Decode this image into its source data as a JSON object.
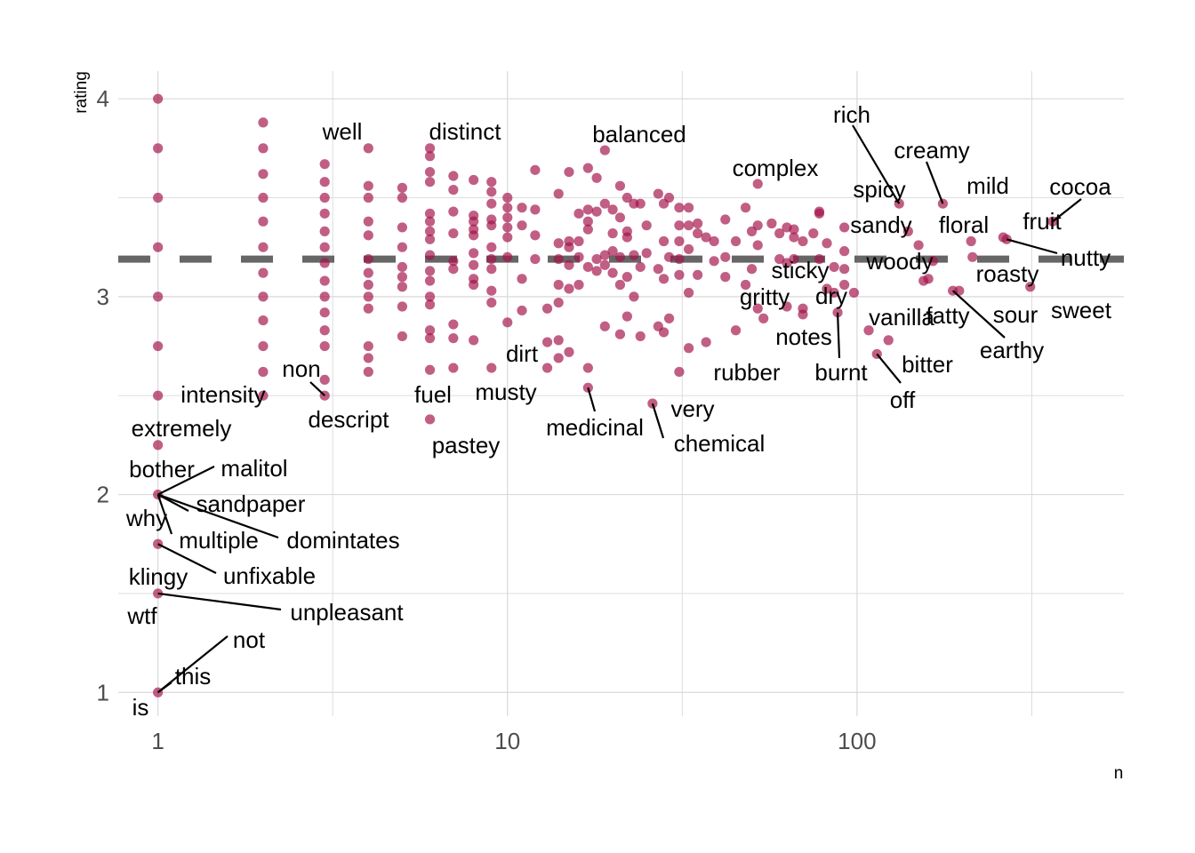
{
  "chart_data": {
    "type": "scatter",
    "title": "",
    "xlabel": "n",
    "ylabel": "rating",
    "xscale": "log10",
    "xlim": [
      0.77,
      580
    ],
    "ylim": [
      0.88,
      4.14
    ],
    "xticks": [
      {
        "value": 1,
        "label": "1"
      },
      {
        "value": 10,
        "label": "10"
      },
      {
        "value": 100,
        "label": "100"
      }
    ],
    "yticks": [
      {
        "value": 1,
        "label": "1"
      },
      {
        "value": 2,
        "label": "2"
      },
      {
        "value": 3,
        "label": "3"
      },
      {
        "value": 4,
        "label": "4"
      }
    ],
    "grid": true,
    "reference_line": {
      "y": 3.19,
      "style": "dashed",
      "color": "#666666"
    },
    "point_color": "#A3124A",
    "points": [
      [
        1,
        4.0
      ],
      [
        1,
        3.75
      ],
      [
        1,
        3.5
      ],
      [
        1,
        3.25
      ],
      [
        1,
        3.0
      ],
      [
        1,
        2.75
      ],
      [
        1,
        2.5
      ],
      [
        1,
        2.25
      ],
      [
        1,
        2.0
      ],
      [
        1,
        1.75
      ],
      [
        1,
        1.5
      ],
      [
        1,
        1.0
      ],
      [
        2,
        3.88
      ],
      [
        2,
        3.75
      ],
      [
        2,
        3.62
      ],
      [
        2,
        3.5
      ],
      [
        2,
        3.38
      ],
      [
        2,
        3.25
      ],
      [
        2,
        3.12
      ],
      [
        2,
        3.0
      ],
      [
        2,
        2.88
      ],
      [
        2,
        2.75
      ],
      [
        2,
        2.62
      ],
      [
        2,
        2.5
      ],
      [
        3,
        3.67
      ],
      [
        3,
        3.58
      ],
      [
        3,
        3.5
      ],
      [
        3,
        3.42
      ],
      [
        3,
        3.33
      ],
      [
        3,
        3.25
      ],
      [
        3,
        3.17
      ],
      [
        3,
        3.08
      ],
      [
        3,
        3.0
      ],
      [
        3,
        2.92
      ],
      [
        3,
        2.83
      ],
      [
        3,
        2.75
      ],
      [
        3,
        2.58
      ],
      [
        3,
        2.5
      ],
      [
        4,
        3.75
      ],
      [
        4,
        3.56
      ],
      [
        4,
        3.5
      ],
      [
        4,
        3.38
      ],
      [
        4,
        3.31
      ],
      [
        4,
        3.19
      ],
      [
        4,
        3.12
      ],
      [
        4,
        3.06
      ],
      [
        4,
        3.0
      ],
      [
        4,
        2.94
      ],
      [
        4,
        2.75
      ],
      [
        4,
        2.69
      ],
      [
        4,
        2.62
      ],
      [
        5,
        3.55
      ],
      [
        5,
        3.5
      ],
      [
        5,
        3.35
      ],
      [
        5,
        3.25
      ],
      [
        5,
        3.15
      ],
      [
        5,
        3.1
      ],
      [
        5,
        3.05
      ],
      [
        5,
        2.95
      ],
      [
        5,
        2.8
      ],
      [
        6,
        3.75
      ],
      [
        6,
        3.71
      ],
      [
        6,
        3.63
      ],
      [
        6,
        3.58
      ],
      [
        6,
        3.42
      ],
      [
        6,
        3.38
      ],
      [
        6,
        3.33
      ],
      [
        6,
        3.29
      ],
      [
        6,
        3.21
      ],
      [
        6,
        3.13
      ],
      [
        6,
        3.08
      ],
      [
        6,
        3.0
      ],
      [
        6,
        2.96
      ],
      [
        6,
        2.83
      ],
      [
        6,
        2.79
      ],
      [
        6,
        2.63
      ],
      [
        6,
        2.38
      ],
      [
        7,
        3.61
      ],
      [
        7,
        3.54
      ],
      [
        7,
        3.43
      ],
      [
        7,
        3.32
      ],
      [
        7,
        3.18
      ],
      [
        7,
        3.14
      ],
      [
        7,
        2.86
      ],
      [
        7,
        2.79
      ],
      [
        7,
        2.64
      ],
      [
        8,
        3.59
      ],
      [
        8,
        3.41
      ],
      [
        8,
        3.38
      ],
      [
        8,
        3.34
      ],
      [
        8,
        3.31
      ],
      [
        8,
        3.22
      ],
      [
        8,
        3.16
      ],
      [
        8,
        3.09
      ],
      [
        8,
        3.06
      ],
      [
        8,
        2.78
      ],
      [
        9,
        3.58
      ],
      [
        9,
        3.53
      ],
      [
        9,
        3.47
      ],
      [
        9,
        3.39
      ],
      [
        9,
        3.36
      ],
      [
        9,
        3.25
      ],
      [
        9,
        3.19
      ],
      [
        9,
        3.14
      ],
      [
        9,
        3.03
      ],
      [
        9,
        2.97
      ],
      [
        9,
        2.64
      ],
      [
        10,
        3.5
      ],
      [
        10,
        3.45
      ],
      [
        10,
        3.4
      ],
      [
        10,
        3.35
      ],
      [
        10,
        3.3
      ],
      [
        10,
        3.2
      ],
      [
        10,
        2.87
      ],
      [
        11,
        3.45
      ],
      [
        11,
        3.36
      ],
      [
        11,
        3.09
      ],
      [
        11,
        2.93
      ],
      [
        12,
        3.64
      ],
      [
        12,
        3.44
      ],
      [
        12,
        3.31
      ],
      [
        12,
        3.19
      ],
      [
        13,
        2.94
      ],
      [
        13,
        2.77
      ],
      [
        13,
        2.64
      ],
      [
        14,
        3.52
      ],
      [
        14,
        3.27
      ],
      [
        14,
        3.19
      ],
      [
        14,
        3.06
      ],
      [
        14,
        2.97
      ],
      [
        14,
        2.78
      ],
      [
        14,
        2.69
      ],
      [
        15,
        3.63
      ],
      [
        15,
        3.28
      ],
      [
        15,
        3.25
      ],
      [
        15,
        3.16
      ],
      [
        15,
        3.04
      ],
      [
        15,
        2.72
      ],
      [
        16,
        3.42
      ],
      [
        16,
        3.28
      ],
      [
        16,
        3.2
      ],
      [
        16,
        3.06
      ],
      [
        17,
        3.65
      ],
      [
        17,
        3.44
      ],
      [
        17,
        3.38
      ],
      [
        17,
        3.34
      ],
      [
        17,
        3.15
      ],
      [
        17,
        2.64
      ],
      [
        17,
        2.54
      ],
      [
        18,
        3.6
      ],
      [
        18,
        3.43
      ],
      [
        18,
        3.19
      ],
      [
        18,
        3.13
      ],
      [
        19,
        3.74
      ],
      [
        19,
        3.47
      ],
      [
        19,
        3.21
      ],
      [
        19,
        3.16
      ],
      [
        19,
        2.85
      ],
      [
        20,
        3.44
      ],
      [
        20,
        3.32
      ],
      [
        20,
        3.23
      ],
      [
        20,
        3.12
      ],
      [
        21,
        3.56
      ],
      [
        21,
        3.4
      ],
      [
        21,
        3.2
      ],
      [
        21,
        3.06
      ],
      [
        21,
        2.81
      ],
      [
        22,
        3.5
      ],
      [
        22,
        3.33
      ],
      [
        22,
        3.3
      ],
      [
        22,
        3.1
      ],
      [
        22,
        2.9
      ],
      [
        23,
        3.47
      ],
      [
        23,
        3.21
      ],
      [
        23,
        3.0
      ],
      [
        24,
        3.47
      ],
      [
        24,
        3.15
      ],
      [
        24,
        2.8
      ],
      [
        25,
        3.36
      ],
      [
        25,
        3.22
      ],
      [
        26,
        2.46
      ],
      [
        27,
        3.52
      ],
      [
        27,
        3.14
      ],
      [
        27,
        2.85
      ],
      [
        28,
        3.47
      ],
      [
        28,
        3.28
      ],
      [
        28,
        3.09
      ],
      [
        28,
        2.82
      ],
      [
        29,
        3.5
      ],
      [
        29,
        3.2
      ],
      [
        29,
        2.89
      ],
      [
        31,
        3.45
      ],
      [
        31,
        3.36
      ],
      [
        31,
        3.28
      ],
      [
        31,
        3.19
      ],
      [
        31,
        3.11
      ],
      [
        31,
        2.62
      ],
      [
        33,
        3.45
      ],
      [
        33,
        3.36
      ],
      [
        33,
        3.24
      ],
      [
        33,
        3.02
      ],
      [
        33,
        2.74
      ],
      [
        35,
        3.37
      ],
      [
        35,
        3.32
      ],
      [
        35,
        3.11
      ],
      [
        37,
        3.3
      ],
      [
        37,
        2.77
      ],
      [
        39,
        3.28
      ],
      [
        39,
        3.18
      ],
      [
        42,
        3.39
      ],
      [
        42,
        3.2
      ],
      [
        42,
        3.1
      ],
      [
        45,
        3.28
      ],
      [
        45,
        2.83
      ],
      [
        48,
        3.45
      ],
      [
        48,
        3.06
      ],
      [
        50,
        3.33
      ],
      [
        50,
        3.14
      ],
      [
        52,
        3.57
      ],
      [
        52,
        3.36
      ],
      [
        52,
        3.26
      ],
      [
        52,
        2.94
      ],
      [
        54,
        2.89
      ],
      [
        57,
        3.37
      ],
      [
        60,
        3.32
      ],
      [
        60,
        3.19
      ],
      [
        63,
        3.35
      ],
      [
        63,
        3.17
      ],
      [
        63,
        2.95
      ],
      [
        66,
        3.34
      ],
      [
        66,
        3.3
      ],
      [
        66,
        3.19
      ],
      [
        70,
        3.28
      ],
      [
        70,
        2.94
      ],
      [
        70,
        2.91
      ],
      [
        75,
        3.32
      ],
      [
        78,
        3.43
      ],
      [
        78,
        3.42
      ],
      [
        78,
        3.19
      ],
      [
        82,
        3.27
      ],
      [
        82,
        3.04
      ],
      [
        86,
        3.15
      ],
      [
        86,
        3.02
      ],
      [
        88,
        2.92
      ],
      [
        92,
        3.35
      ],
      [
        92,
        3.23
      ],
      [
        92,
        3.14
      ],
      [
        92,
        3.06
      ],
      [
        98,
        3.02
      ],
      [
        108,
        2.83
      ],
      [
        114,
        2.71
      ],
      [
        123,
        2.78
      ],
      [
        132,
        3.47
      ],
      [
        140,
        3.33
      ],
      [
        150,
        3.26
      ],
      [
        155,
        3.08
      ],
      [
        160,
        3.09
      ],
      [
        165,
        3.18
      ],
      [
        176,
        3.47
      ],
      [
        188,
        3.03
      ],
      [
        196,
        3.03
      ],
      [
        212,
        3.28
      ],
      [
        214,
        3.2
      ],
      [
        262,
        3.3
      ],
      [
        268,
        3.29
      ],
      [
        313,
        3.05
      ],
      [
        363,
        3.38
      ]
    ],
    "labeled_points": [
      {
        "label": "is",
        "x": 1,
        "y": 1.0
      },
      {
        "label": "this",
        "x": 1,
        "y": 1.0
      },
      {
        "label": "not",
        "x": 1,
        "y": 1.0
      },
      {
        "label": "wtf",
        "x": 1,
        "y": 1.5
      },
      {
        "label": "unpleasant",
        "x": 1,
        "y": 1.5
      },
      {
        "label": "klingy",
        "x": 1,
        "y": 1.5
      },
      {
        "label": "unfixable",
        "x": 1,
        "y": 1.75
      },
      {
        "label": "multiple",
        "x": 1,
        "y": 2.0
      },
      {
        "label": "domintates",
        "x": 1,
        "y": 2.0
      },
      {
        "label": "why",
        "x": 1,
        "y": 2.0
      },
      {
        "label": "sandpaper",
        "x": 1,
        "y": 2.0
      },
      {
        "label": "bother",
        "x": 1,
        "y": 2.0
      },
      {
        "label": "malitol",
        "x": 1,
        "y": 2.0
      },
      {
        "label": "extremely",
        "x": 1,
        "y": 2.25
      },
      {
        "label": "intensity",
        "x": 1,
        "y": 2.5
      },
      {
        "label": "non",
        "x": 3,
        "y": 2.5
      },
      {
        "label": "descript",
        "x": 3,
        "y": 2.5
      },
      {
        "label": "well",
        "x": 3,
        "y": 3.75
      },
      {
        "label": "distinct",
        "x": 6,
        "y": 3.75
      },
      {
        "label": "fuel",
        "x": 6,
        "y": 2.63
      },
      {
        "label": "pastey",
        "x": 6,
        "y": 2.38
      },
      {
        "label": "dirt",
        "x": 9,
        "y": 2.64
      },
      {
        "label": "musty",
        "x": 7,
        "y": 2.64
      },
      {
        "label": "balanced",
        "x": 19,
        "y": 3.74
      },
      {
        "label": "medicinal",
        "x": 17,
        "y": 2.54
      },
      {
        "label": "very",
        "x": 26,
        "y": 2.46
      },
      {
        "label": "chemical",
        "x": 26,
        "y": 2.46
      },
      {
        "label": "rubber",
        "x": 31,
        "y": 2.62
      },
      {
        "label": "complex",
        "x": 52,
        "y": 3.57
      },
      {
        "label": "sticky",
        "x": 50,
        "y": 3.14
      },
      {
        "label": "gritty",
        "x": 52,
        "y": 2.94
      },
      {
        "label": "dry",
        "x": 70,
        "y": 2.94
      },
      {
        "label": "notes",
        "x": 70,
        "y": 2.91
      },
      {
        "label": "burnt",
        "x": 88,
        "y": 2.92
      },
      {
        "label": "rich",
        "x": 132,
        "y": 3.47
      },
      {
        "label": "spicy",
        "x": 140,
        "y": 3.33
      },
      {
        "label": "sandy",
        "x": 150,
        "y": 3.26
      },
      {
        "label": "woody",
        "x": 160,
        "y": 3.09
      },
      {
        "label": "vanilla",
        "x": 108,
        "y": 2.83
      },
      {
        "label": "bitter",
        "x": 114,
        "y": 2.71
      },
      {
        "label": "off",
        "x": 114,
        "y": 2.71
      },
      {
        "label": "fatty",
        "x": 155,
        "y": 3.08
      },
      {
        "label": "creamy",
        "x": 176,
        "y": 3.47
      },
      {
        "label": "floral",
        "x": 212,
        "y": 3.28
      },
      {
        "label": "mild",
        "x": 212,
        "y": 3.28
      },
      {
        "label": "roasty",
        "x": 214,
        "y": 3.2
      },
      {
        "label": "sour",
        "x": 196,
        "y": 3.03
      },
      {
        "label": "earthy",
        "x": 188,
        "y": 3.03
      },
      {
        "label": "fruit",
        "x": 262,
        "y": 3.3
      },
      {
        "label": "nutty",
        "x": 268,
        "y": 3.29
      },
      {
        "label": "cocoa",
        "x": 363,
        "y": 3.38
      },
      {
        "label": "sweet",
        "x": 313,
        "y": 3.05
      }
    ]
  }
}
